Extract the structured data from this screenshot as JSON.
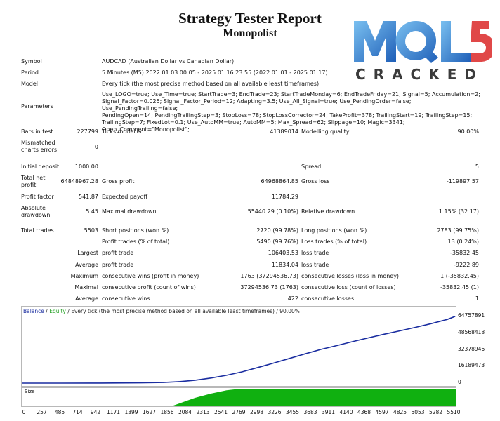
{
  "header": {
    "title": "Strategy Tester Report",
    "subtitle": "Monopolist"
  },
  "logo": {
    "text": "MQL5",
    "subtext": "CRACKED",
    "colors": [
      "#2f7fd0",
      "#e04848"
    ]
  },
  "settings": {
    "symbol_label": "Symbol",
    "symbol_value": "AUDCAD (Australian Dollar vs Canadian Dollar)",
    "period_label": "Period",
    "period_value": "5 Minutes (M5) 2022.01.03 00:05 - 2025.01.16 23:55 (2022.01.01 - 2025.01.17)",
    "model_label": "Model",
    "model_value": "Every tick (the most precise method based on all available least timeframes)",
    "parameters_label": "Parameters",
    "parameters_lines": [
      "Use_LOGO=true; Use_Time=true; StartTrade=3; EndTrade=23; StartTradeMonday=6; EndTradeFriday=21; Signal=5; Accumulation=2;",
      "Signal_Factor=0.025; Signal_Factor_Period=12; Adapting=3.5; Use_All_Signal=true; Use_PendingOrder=false; Use_PendingTrailing=false;",
      "PendingOpen=14; PendingTrailingStep=3; StopLoss=78; StopLossCorrector=24; TakeProfit=378; TrailingStart=19; TrailingStep=15;",
      "TrailingStep=7; FixedLot=0.1; Use_AutoMM=true; AutoMM=5; Max_Spread=62; Slippage=10; Magic=3341; Open_Comment=\"Monopolist\";"
    ]
  },
  "stats": {
    "bars_label": "Bars in test",
    "bars_value": "227799",
    "ticks_label": "Ticks modelled",
    "ticks_value": "41389014",
    "quality_label": "Modelling quality",
    "quality_value": "90.00%",
    "mismatch_label_1": "Mismatched",
    "mismatch_label_2": "charts errors",
    "mismatch_value": "0",
    "deposit_label": "Initial deposit",
    "deposit_value": "1000.00",
    "spread_label": "Spread",
    "spread_value": "5",
    "netprofit_label_1": "Total net",
    "netprofit_label_2": "profit",
    "netprofit_value": "64848967.28",
    "grossprofit_label": "Gross profit",
    "grossprofit_value": "64968864.85",
    "grossloss_label": "Gross loss",
    "grossloss_value": "-119897.57",
    "pf_label": "Profit factor",
    "pf_value": "541.87",
    "payoff_label": "Expected payoff",
    "payoff_value": "11784.29",
    "absdd_label_1": "Absolute",
    "absdd_label_2": "drawdown",
    "absdd_value": "5.45",
    "maxdd_label": "Maximal drawdown",
    "maxdd_value": "55440.29 (0.10%)",
    "reldd_label": "Relative drawdown",
    "reldd_value": "1.15% (32.17)",
    "trades_label": "Total trades",
    "trades_value": "5503",
    "short_label": "Short positions (won %)",
    "short_value": "2720 (99.78%)",
    "long_label": "Long positions (won %)",
    "long_value": "2783 (99.75%)",
    "profit_trades_label": "Profit trades (% of total)",
    "profit_trades_value": "5490 (99.76%)",
    "loss_trades_label": "Loss trades (% of total)",
    "loss_trades_value": "13 (0.24%)",
    "largest_label": "Largest",
    "largest_profit_label": "profit trade",
    "largest_profit_value": "106403.53",
    "largest_loss_label": "loss trade",
    "largest_loss_value": "-35832.45",
    "average_label": "Average",
    "avg_profit_label": "profit trade",
    "avg_profit_value": "11834.04",
    "avg_loss_label": "loss trade",
    "avg_loss_value": "-9222.89",
    "maximum_label": "Maximum",
    "max_wins_label": "consecutive wins (profit in money)",
    "max_wins_value": "1763 (37294536.73)",
    "max_losses_label": "consecutive losses (loss in money)",
    "max_losses_value": "1 (-35832.45)",
    "maximal_label": "Maximal",
    "maximal_profit_label": "consecutive profit (count of wins)",
    "maximal_profit_value": "37294536.73 (1763)",
    "maximal_loss_label": "consecutive loss (count of losses)",
    "maximal_loss_value": "-35832.45 (1)",
    "average2_label": "Average",
    "avg_wins_label": "consecutive wins",
    "avg_wins_value": "422",
    "avg_losses_label": "consecutive losses",
    "avg_losses_value": "1"
  },
  "chart_header": {
    "balance": "Balance",
    "sep": " / ",
    "equity": "Equity",
    "rest": " / Every tick (the most precise method based on all available least timeframes) / 90.00%"
  },
  "size_label": "Size",
  "colors": {
    "balance": "#1a2da0",
    "size": "#10b010",
    "axis": "#b8b8b8"
  },
  "chart_data": {
    "type": "line",
    "title": "",
    "xlabel": "",
    "ylabel": "",
    "x_ticks": [
      "0",
      "257",
      "485",
      "714",
      "942",
      "1171",
      "1399",
      "1627",
      "1856",
      "2084",
      "2313",
      "2541",
      "2769",
      "2998",
      "3226",
      "3455",
      "3683",
      "3911",
      "4140",
      "4368",
      "4597",
      "4825",
      "5053",
      "5282",
      "5510"
    ],
    "y_ticks": [
      "64757891",
      "48568418",
      "32378946",
      "16189473",
      "0"
    ],
    "xlim": [
      0,
      5510
    ],
    "ylim": [
      0,
      64757891
    ],
    "series": [
      {
        "x": [
          0,
          500,
          1000,
          1500,
          1800,
          2000,
          2200,
          2400,
          2600,
          2800,
          3000,
          3200,
          3400,
          3600,
          3800,
          4000,
          4200,
          4400,
          4600,
          4800,
          5000,
          5200,
          5400,
          5503
        ],
        "values": [
          1000,
          20000,
          80000,
          250000,
          600000,
          1400000,
          2800000,
          4900000,
          7600000,
          11000000,
          15200000,
          19500000,
          24000000,
          28500000,
          32800000,
          36500000,
          40300000,
          44000000,
          47500000,
          50800000,
          54200000,
          57800000,
          61800000,
          64848967
        ]
      }
    ],
    "size_series": {
      "x": [
        0,
        1900,
        2050,
        2200,
        2400,
        2600,
        2700,
        5510
      ],
      "values": [
        0,
        0,
        0.25,
        0.5,
        0.75,
        0.95,
        1,
        1
      ]
    },
    "grid": false
  }
}
